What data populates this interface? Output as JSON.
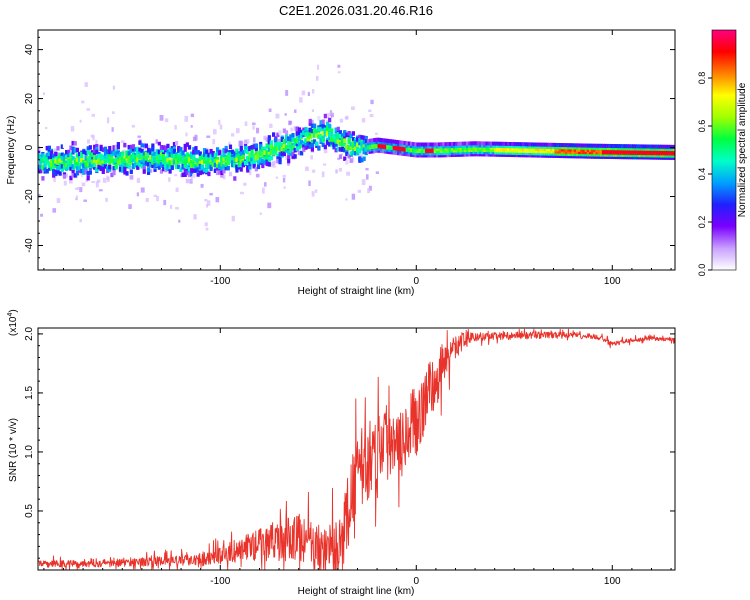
{
  "title": "C2E1.2026.031.20.46.R16",
  "chart_data": [
    {
      "type": "heatmap",
      "title": "C2E1.2026.031.20.46.R16",
      "xlabel": "Height of straight line (km)",
      "ylabel": "Frequency (Hz)",
      "xlim": [
        -193,
        132
      ],
      "ylim": [
        -50,
        48
      ],
      "xticks": [
        -100,
        0,
        100
      ],
      "xtick_labels": [
        "-100",
        "0",
        "100"
      ],
      "yticks": [
        -40,
        -20,
        0,
        20,
        40
      ],
      "ytick_labels": [
        "-40",
        "-20",
        "0",
        "20",
        "40"
      ],
      "ridge": {
        "height_km": [
          -193,
          -160,
          -130,
          -110,
          -95,
          -80,
          -70,
          -60,
          -52,
          -46,
          -40,
          -35,
          -28,
          -20,
          -10,
          0,
          10,
          30,
          60,
          90,
          132
        ],
        "frequency_hz": [
          -6,
          -5,
          -4,
          -6,
          -5,
          -3,
          0,
          3,
          5,
          6,
          3,
          1,
          0,
          1,
          0,
          -1,
          -1,
          -0.5,
          -1,
          -1.5,
          -2
        ]
      },
      "colorbar": {
        "label": "Normalized spectral amplitude",
        "range": [
          0.0,
          1.0
        ],
        "ticks": [
          0.0,
          0.2,
          0.4,
          0.6,
          0.8
        ],
        "tick_labels": [
          "0.0",
          "0.2",
          "0.4",
          "0.6",
          "0.8"
        ],
        "colors": [
          "#ffffff",
          "#c9a0ff",
          "#7a00ff",
          "#2020ff",
          "#00a0ff",
          "#00ffc8",
          "#00ff40",
          "#a0ff00",
          "#ffff00",
          "#ff8000",
          "#ff0000",
          "#ff0080"
        ]
      }
    },
    {
      "type": "line",
      "xlabel": "Height of straight line (km)",
      "ylabel": "SNR (10 * v/v)",
      "y_multiplier_label": "(x10",
      "y_multiplier_exp": "4",
      "y_multiplier_close": ")",
      "xlim": [
        -193,
        132
      ],
      "ylim": [
        0,
        2.05
      ],
      "xticks": [
        -100,
        0,
        100
      ],
      "xtick_labels": [
        "-100",
        "0",
        "100"
      ],
      "yticks": [
        0.5,
        1.0,
        1.5,
        2.0
      ],
      "ytick_labels": [
        "0.5",
        "1.0",
        "1.5",
        "2.0"
      ],
      "color": "#e8322a",
      "trend": {
        "height_km": [
          -193,
          -160,
          -120,
          -100,
          -85,
          -70,
          -60,
          -50,
          -40,
          -34,
          -30,
          -25,
          -20,
          -15,
          -10,
          -5,
          0,
          5,
          10,
          15,
          20,
          25,
          30,
          40,
          60,
          80,
          90,
          95,
          98,
          100,
          110,
          120,
          132
        ],
        "snr_x1e4": [
          0.05,
          0.06,
          0.08,
          0.12,
          0.2,
          0.25,
          0.28,
          0.18,
          0.15,
          0.55,
          0.85,
          0.9,
          1.05,
          1.1,
          1.15,
          1.2,
          1.25,
          1.45,
          1.6,
          1.8,
          1.9,
          1.95,
          1.97,
          1.98,
          1.99,
          1.99,
          1.98,
          1.96,
          1.93,
          1.91,
          1.95,
          1.96,
          1.95
        ]
      },
      "noise_amplitude": {
        "height_km": [
          -193,
          -120,
          -100,
          -70,
          -55,
          -45,
          -35,
          -20,
          -5,
          10,
          20,
          30,
          132
        ],
        "snr_x1e4": [
          0.04,
          0.06,
          0.1,
          0.25,
          0.3,
          0.3,
          0.45,
          0.5,
          0.45,
          0.35,
          0.15,
          0.05,
          0.02
        ]
      }
    }
  ]
}
